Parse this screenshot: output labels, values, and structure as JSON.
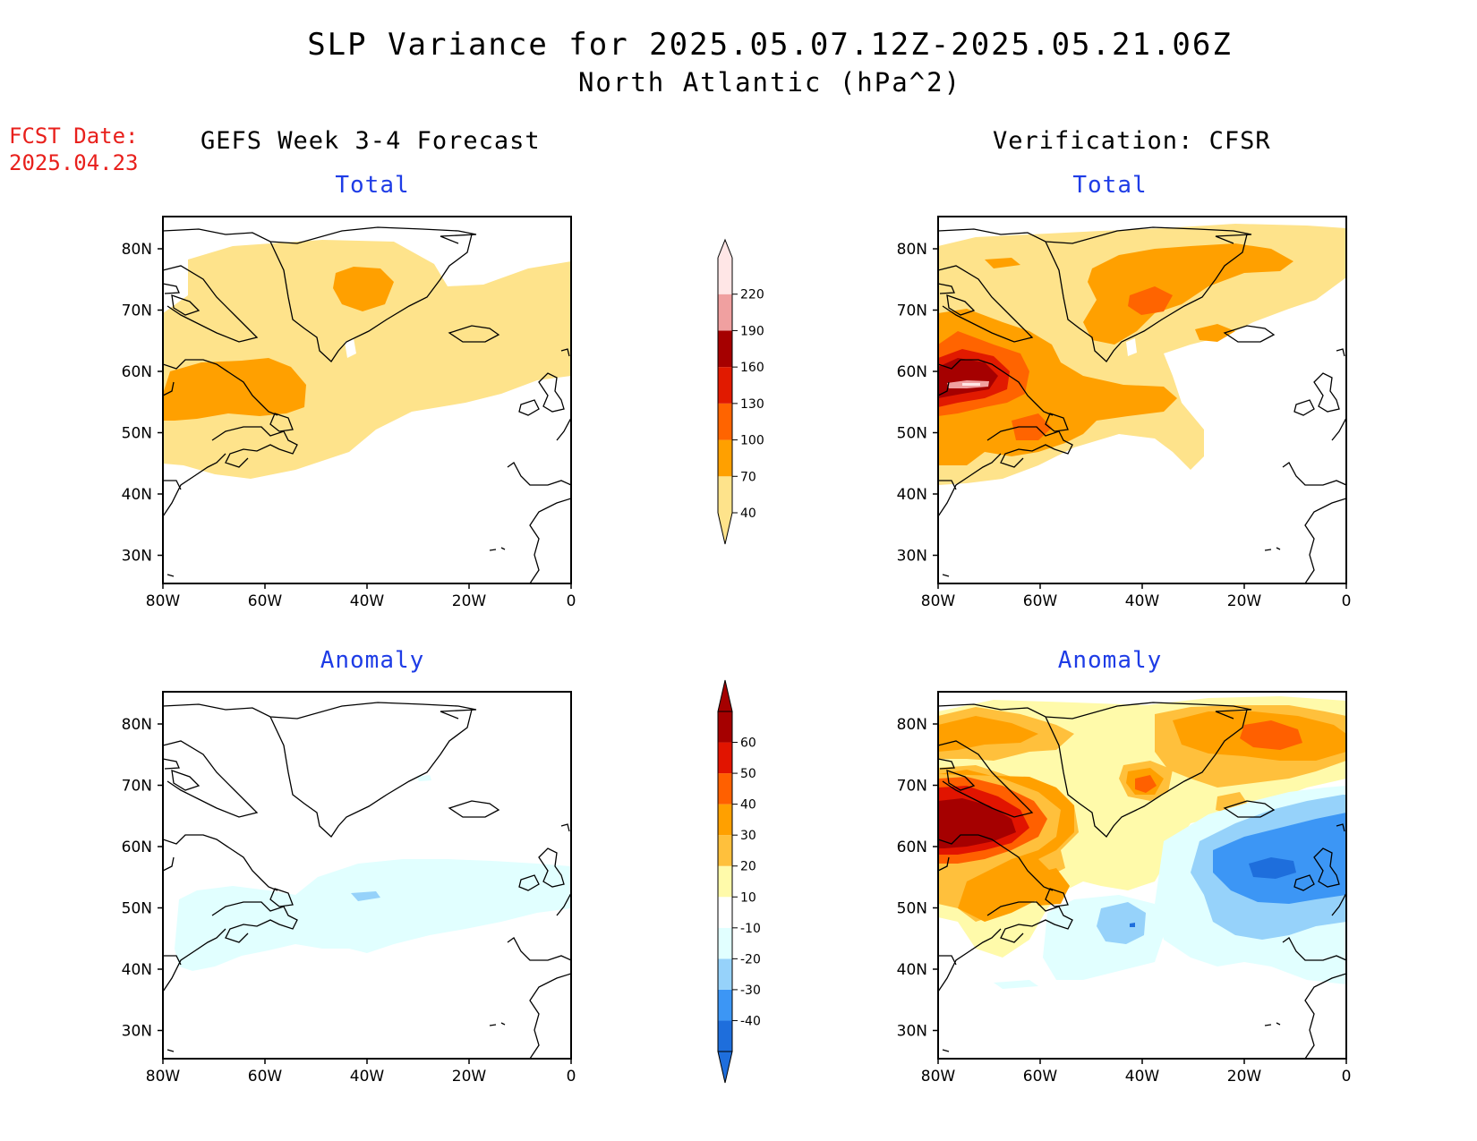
{
  "title": "SLP Variance for 2025.05.07.12Z-2025.05.21.06Z",
  "subtitle": "North Atlantic (hPa^2)",
  "fcst_date_label": "FCST Date:",
  "fcst_date_value": "2025.04.23",
  "left_column_title": "GEFS Week 3-4 Forecast",
  "right_column_title": "Verification: CFSR",
  "panel_total_label": "Total",
  "panel_anomaly_label": "Anomaly",
  "lat_ticks": [
    "80N",
    "70N",
    "60N",
    "50N",
    "40N",
    "30N"
  ],
  "lon_ticks": [
    "80W",
    "60W",
    "40W",
    "20W",
    "0"
  ],
  "colors": {
    "title_red": "#e8201c",
    "subtitle_blue": "#1e3ce6",
    "total_scale": [
      "#fee38b",
      "#ffa000",
      "#ff6400",
      "#e11a00",
      "#a50000",
      "#f0a0a0",
      "#ffe6e6"
    ],
    "anomaly_scale": [
      "#1e6edc",
      "#3c96f5",
      "#96d2fa",
      "#e1ffff",
      "#ffffff",
      "#fffaaa",
      "#ffc03c",
      "#ffa000",
      "#ff6000",
      "#e11400",
      "#a50000"
    ]
  },
  "chart_data": [
    {
      "type": "colorbar",
      "name": "total",
      "levels": [
        40,
        70,
        100,
        130,
        160,
        190,
        220
      ],
      "colors": [
        "#fee38b",
        "#ffa000",
        "#ff6400",
        "#e11a00",
        "#a50000",
        "#f0a0a0",
        "#ffe6e6"
      ]
    },
    {
      "type": "colorbar",
      "name": "anomaly",
      "levels": [
        -40,
        -30,
        -20,
        -10,
        10,
        20,
        30,
        40,
        50,
        60
      ],
      "colors": [
        "#1e6edc",
        "#3c96f5",
        "#96d2fa",
        "#e1ffff",
        "#ffffff",
        "#fffaaa",
        "#ffc03c",
        "#ffa000",
        "#ff6000",
        "#e11400",
        "#a50000"
      ]
    }
  ]
}
